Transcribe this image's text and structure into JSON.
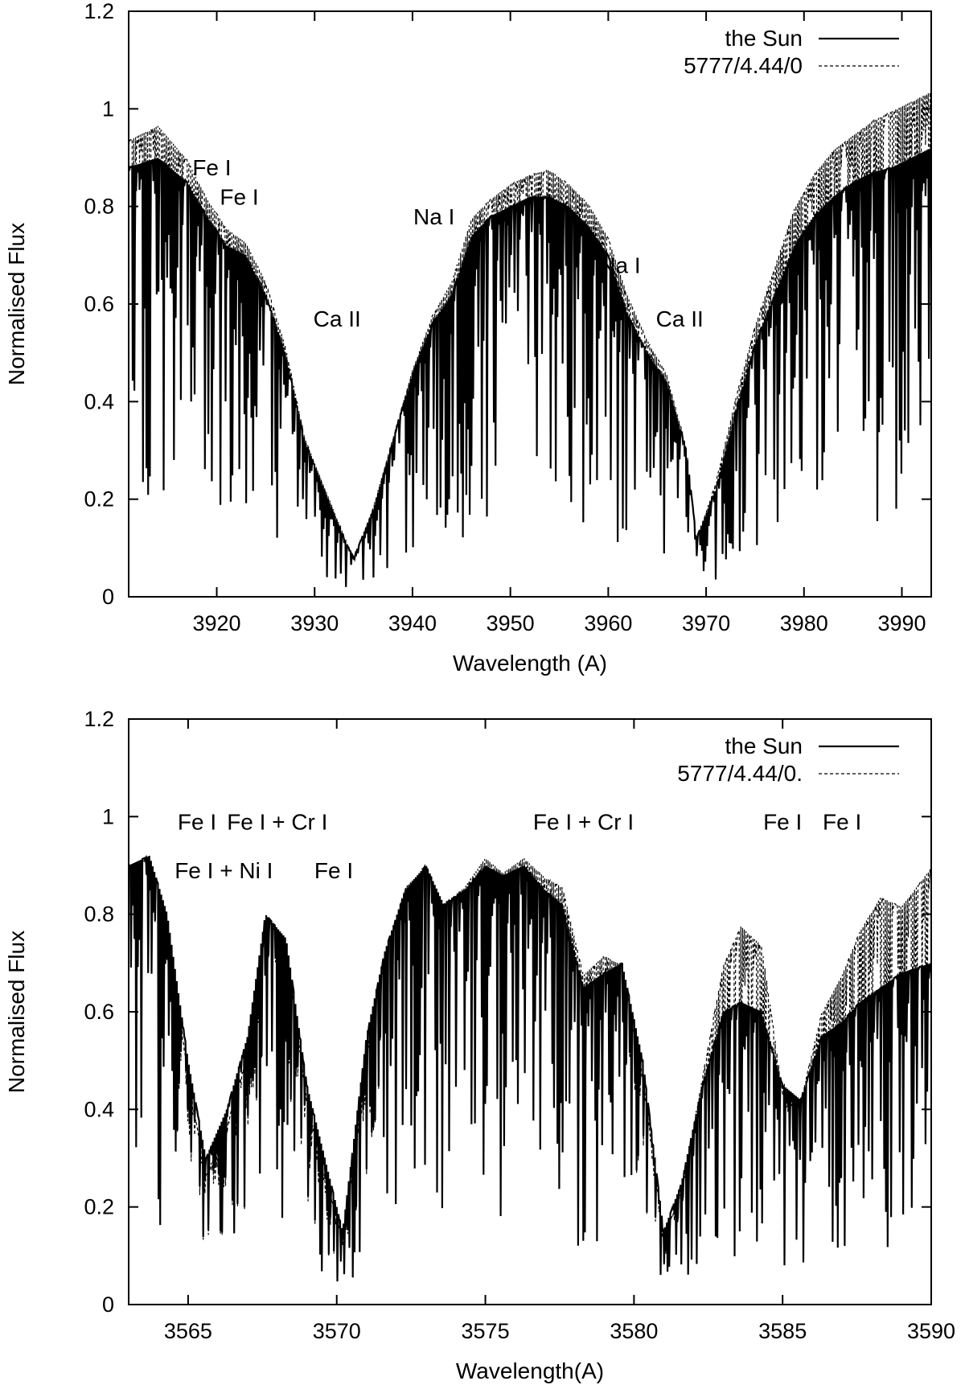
{
  "chart_data": [
    {
      "type": "line",
      "title": "",
      "xlabel": "Wavelength (A)",
      "ylabel": "Normalised Flux",
      "xlim": [
        3911,
        3993
      ],
      "ylim": [
        0,
        1.2
      ],
      "xticks": [
        3920,
        3930,
        3940,
        3950,
        3960,
        3970,
        3980,
        3990
      ],
      "yticks": [
        0,
        0.2,
        0.4,
        0.6,
        0.8,
        1,
        1.2
      ],
      "ytick_labels": [
        "0",
        "0.2",
        "0.4",
        "0.6",
        "0.8",
        "1",
        "1.2"
      ],
      "legend": {
        "position": "top-right",
        "entries": [
          {
            "label": "the Sun",
            "style": "solid"
          },
          {
            "label": "5777/4.44/0",
            "style": "dashed"
          }
        ]
      },
      "series": [
        {
          "name": "the Sun",
          "style": "solid",
          "x": [
            3911,
            3914,
            3917,
            3919,
            3921,
            3923,
            3925,
            3927,
            3929,
            3931,
            3933,
            3934,
            3936,
            3938,
            3940,
            3942,
            3944,
            3946,
            3948,
            3950,
            3952,
            3954,
            3956,
            3958,
            3960,
            3962,
            3964,
            3966,
            3968,
            3969,
            3971,
            3973,
            3975,
            3977,
            3979,
            3981,
            3983,
            3985,
            3987,
            3989,
            3991,
            3993
          ],
          "y": [
            0.88,
            0.9,
            0.85,
            0.78,
            0.72,
            0.7,
            0.62,
            0.5,
            0.32,
            0.22,
            0.12,
            0.08,
            0.18,
            0.32,
            0.46,
            0.56,
            0.62,
            0.74,
            0.78,
            0.8,
            0.82,
            0.82,
            0.8,
            0.76,
            0.7,
            0.58,
            0.5,
            0.44,
            0.3,
            0.12,
            0.22,
            0.38,
            0.52,
            0.62,
            0.72,
            0.78,
            0.82,
            0.85,
            0.87,
            0.88,
            0.9,
            0.92
          ]
        },
        {
          "name": "5777/4.44/0",
          "style": "dashed",
          "x": [
            3911,
            3914,
            3917,
            3919,
            3921,
            3923,
            3925,
            3927,
            3929,
            3931,
            3933,
            3934,
            3936,
            3938,
            3940,
            3942,
            3944,
            3946,
            3948,
            3950,
            3952,
            3954,
            3956,
            3958,
            3960,
            3962,
            3964,
            3966,
            3968,
            3969,
            3971,
            3973,
            3975,
            3977,
            3979,
            3981,
            3983,
            3985,
            3987,
            3989,
            3991,
            3993
          ],
          "y": [
            0.92,
            0.95,
            0.88,
            0.8,
            0.74,
            0.71,
            0.63,
            0.5,
            0.31,
            0.21,
            0.11,
            0.06,
            0.17,
            0.31,
            0.45,
            0.56,
            0.63,
            0.76,
            0.8,
            0.83,
            0.85,
            0.86,
            0.83,
            0.79,
            0.72,
            0.6,
            0.51,
            0.44,
            0.29,
            0.1,
            0.22,
            0.39,
            0.54,
            0.66,
            0.78,
            0.85,
            0.9,
            0.93,
            0.96,
            0.98,
            1.0,
            1.02
          ]
        }
      ],
      "annotations": [
        {
          "text": "Fe I",
          "x": 3919.5,
          "y": 0.88
        },
        {
          "text": "Fe I",
          "x": 3922.3,
          "y": 0.82
        },
        {
          "text": "Ca II",
          "x": 3932.3,
          "y": 0.57
        },
        {
          "text": "Na I",
          "x": 3942.2,
          "y": 0.78
        },
        {
          "text": "Na I",
          "x": 3961.2,
          "y": 0.68
        },
        {
          "text": "Ca II",
          "x": 3967.3,
          "y": 0.57
        }
      ]
    },
    {
      "type": "line",
      "title": "",
      "xlabel": "Wavelength(A)",
      "ylabel": "Normalised Flux",
      "xlim": [
        3563,
        3590
      ],
      "ylim": [
        0,
        1.2
      ],
      "xticks": [
        3565,
        3570,
        3575,
        3580,
        3585,
        3590
      ],
      "yticks": [
        0,
        0.2,
        0.4,
        0.6,
        0.8,
        1,
        1.2
      ],
      "ytick_labels": [
        "0",
        "0.2",
        "0.4",
        "0.6",
        "0.8",
        "1",
        "1.2"
      ],
      "legend": {
        "position": "top-right",
        "entries": [
          {
            "label": "the Sun",
            "style": "solid"
          },
          {
            "label": "5777/4.44/0.",
            "style": "dashed"
          }
        ]
      },
      "series": [
        {
          "name": "the Sun",
          "style": "solid",
          "x": [
            3563,
            3563.7,
            3564.3,
            3565,
            3565.6,
            3566.3,
            3567,
            3567.6,
            3568.3,
            3569,
            3569.6,
            3570.2,
            3571,
            3571.6,
            3572.3,
            3573,
            3573.6,
            3574.3,
            3575,
            3575.6,
            3576.3,
            3577,
            3577.6,
            3578.3,
            3579,
            3579.6,
            3580.3,
            3581,
            3581.6,
            3582.3,
            3583,
            3583.6,
            3584.3,
            3585,
            3585.6,
            3586.3,
            3587,
            3587.6,
            3588.3,
            3589,
            3590
          ],
          "y": [
            0.9,
            0.92,
            0.8,
            0.5,
            0.3,
            0.4,
            0.55,
            0.8,
            0.75,
            0.45,
            0.3,
            0.15,
            0.55,
            0.72,
            0.85,
            0.9,
            0.82,
            0.85,
            0.9,
            0.88,
            0.9,
            0.85,
            0.82,
            0.65,
            0.68,
            0.7,
            0.5,
            0.15,
            0.25,
            0.45,
            0.6,
            0.62,
            0.6,
            0.45,
            0.42,
            0.55,
            0.58,
            0.62,
            0.65,
            0.68,
            0.7
          ]
        },
        {
          "name": "5777/4.44/0.",
          "style": "dashed",
          "x": [
            3563,
            3563.7,
            3564.3,
            3565,
            3565.6,
            3566.3,
            3567,
            3567.6,
            3568.3,
            3569,
            3569.6,
            3570.2,
            3571,
            3571.6,
            3572.3,
            3573,
            3573.6,
            3574.3,
            3575,
            3575.6,
            3576.3,
            3577,
            3577.6,
            3578.3,
            3579,
            3579.6,
            3580.3,
            3581,
            3581.6,
            3582.3,
            3583,
            3583.6,
            3584.3,
            3585,
            3585.6,
            3586.3,
            3587,
            3587.6,
            3588.3,
            3589,
            3590
          ],
          "y": [
            0.88,
            0.9,
            0.78,
            0.45,
            0.25,
            0.35,
            0.5,
            0.78,
            0.72,
            0.4,
            0.25,
            0.12,
            0.5,
            0.7,
            0.84,
            0.88,
            0.8,
            0.84,
            0.9,
            0.87,
            0.9,
            0.86,
            0.84,
            0.66,
            0.7,
            0.68,
            0.45,
            0.12,
            0.22,
            0.45,
            0.68,
            0.76,
            0.72,
            0.42,
            0.4,
            0.58,
            0.66,
            0.75,
            0.82,
            0.8,
            0.88
          ]
        }
      ],
      "annotations": [
        {
          "text": "Fe I",
          "x": 3565.3,
          "y": 0.99
        },
        {
          "text": "Fe I + Cr I",
          "x": 3568.0,
          "y": 0.99
        },
        {
          "text": "Fe I + Ni I",
          "x": 3566.2,
          "y": 0.89
        },
        {
          "text": "Fe I",
          "x": 3569.9,
          "y": 0.89
        },
        {
          "text": "Fe I + Cr I",
          "x": 3578.3,
          "y": 0.99
        },
        {
          "text": "Fe I",
          "x": 3585.0,
          "y": 0.99
        },
        {
          "text": "Fe I",
          "x": 3587.0,
          "y": 0.99
        }
      ]
    }
  ]
}
